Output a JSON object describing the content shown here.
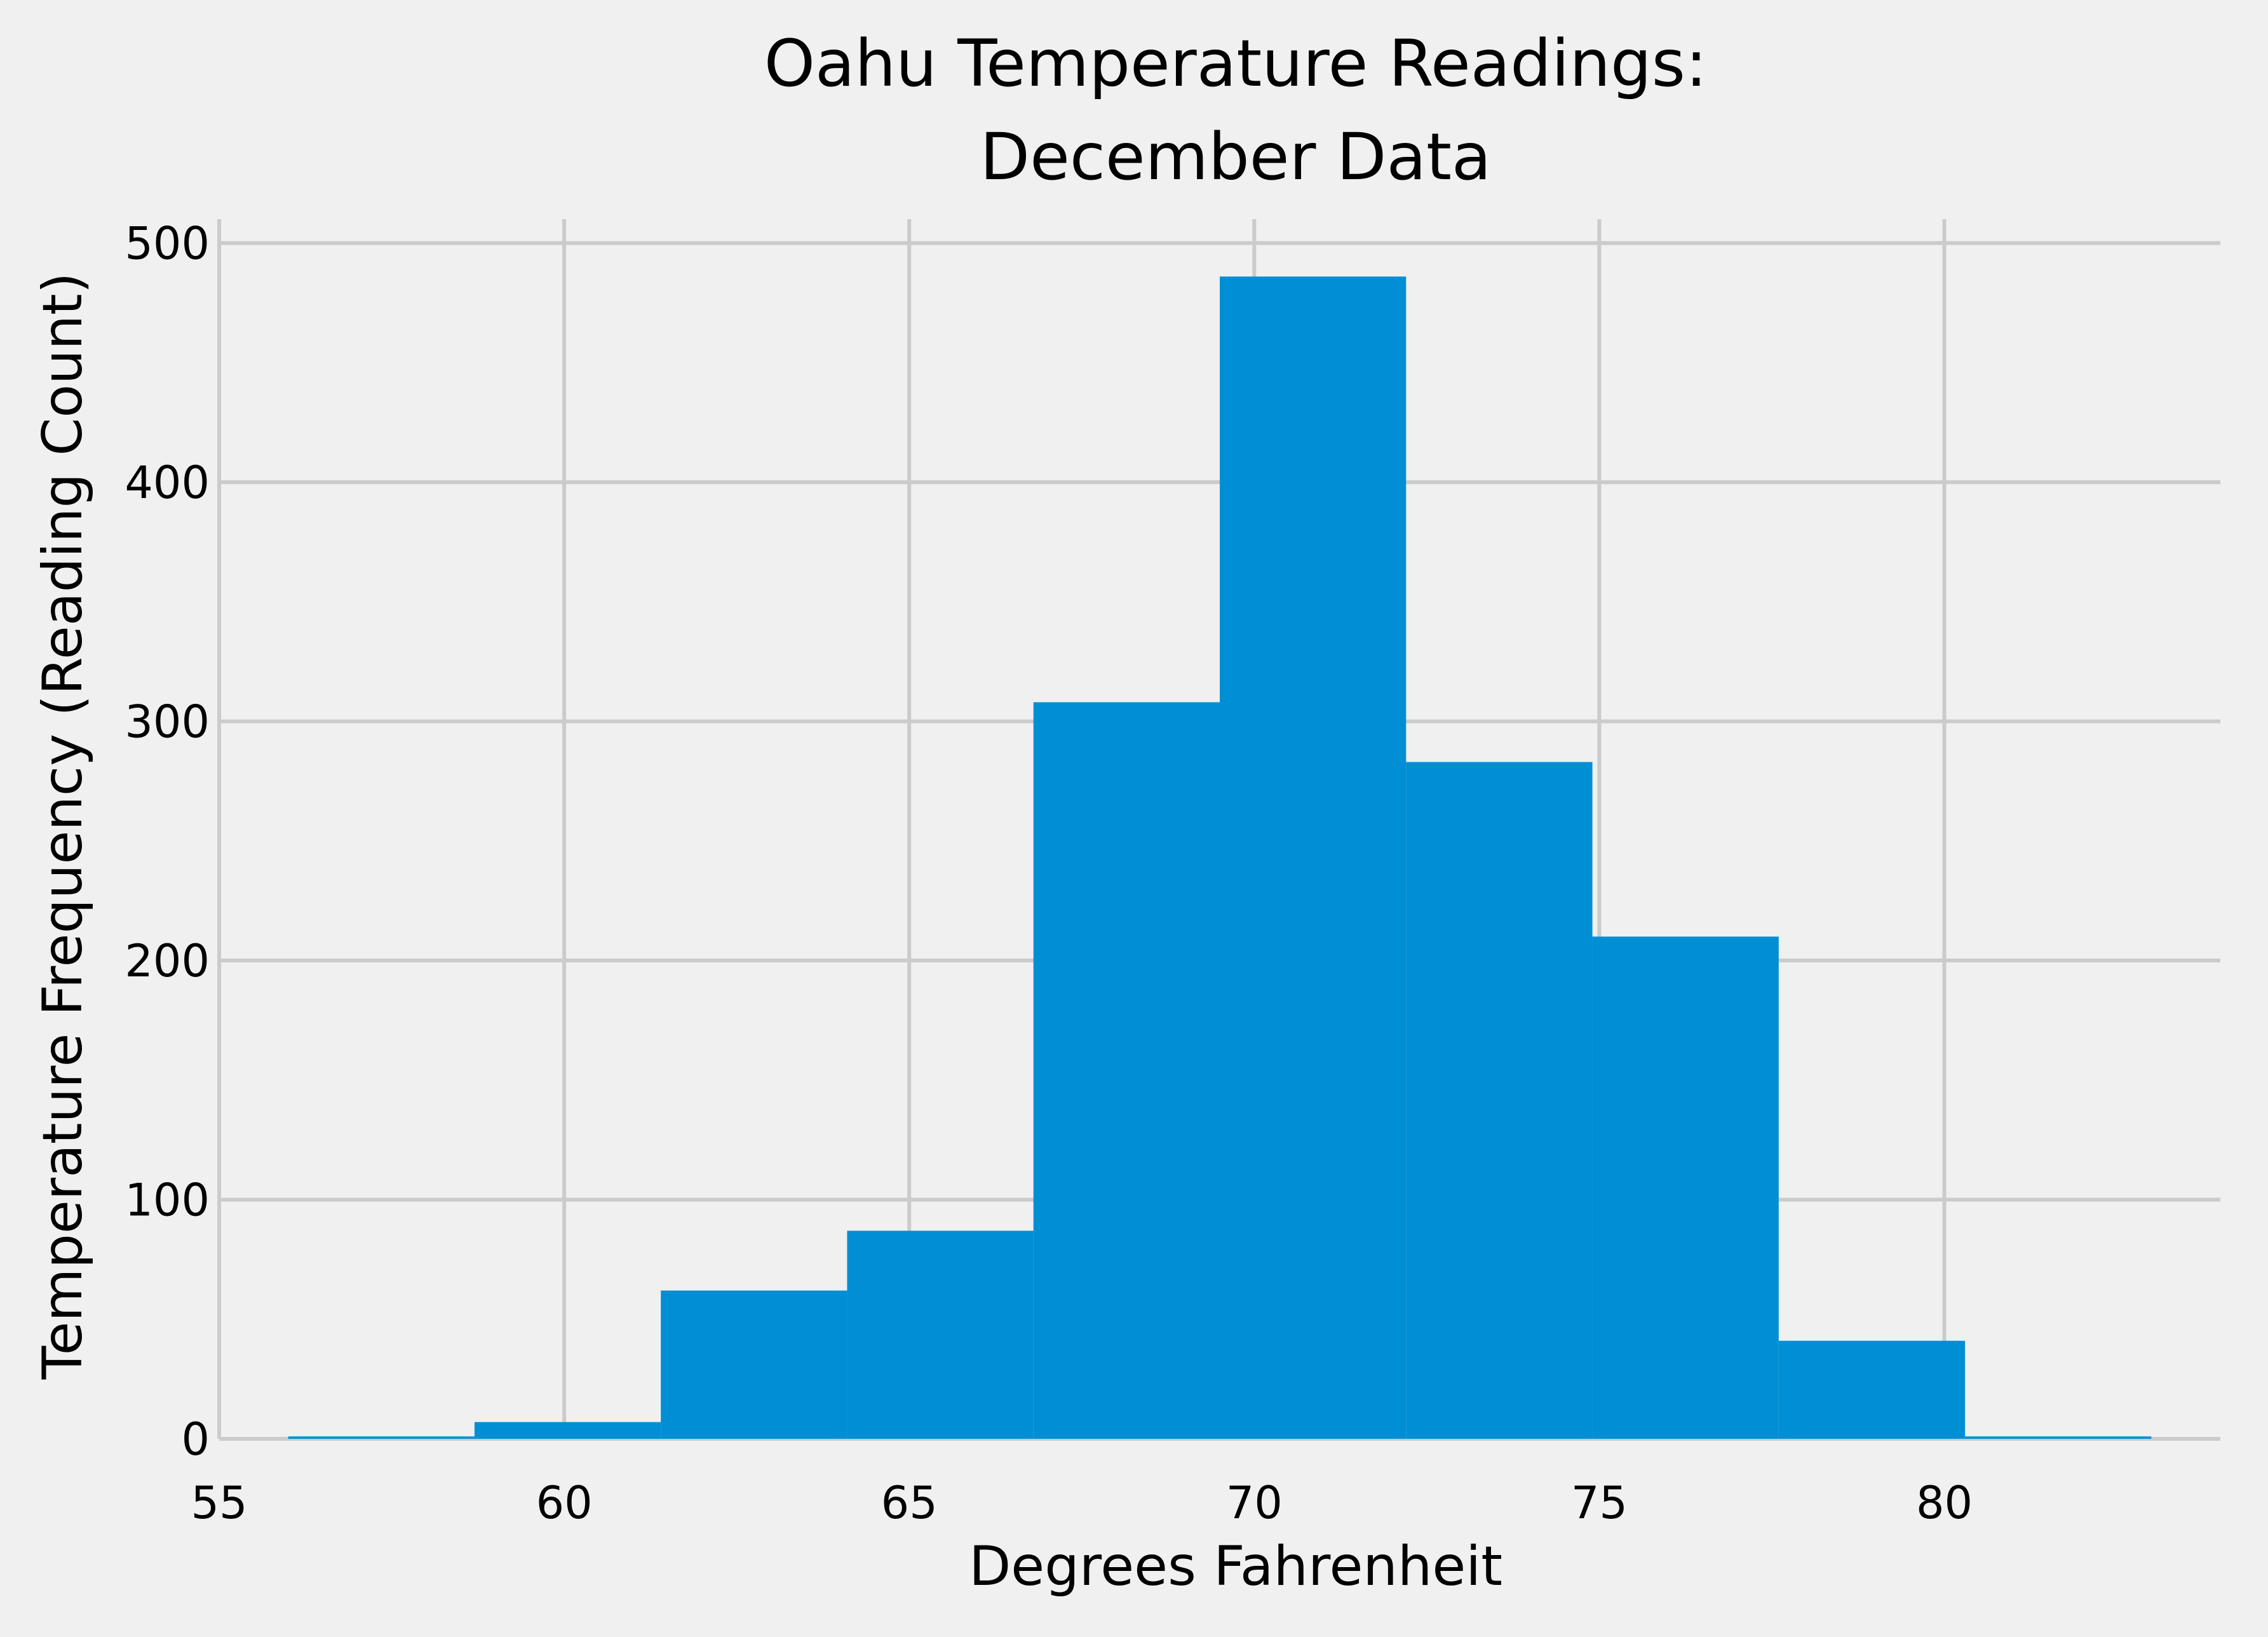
{
  "chart_data": {
    "type": "bar",
    "title_lines": [
      "Oahu Temperature Readings:",
      "December Data"
    ],
    "xlabel": "Degrees Fahrenheit",
    "ylabel": "Temperature Frequency (Reading Count)",
    "xlim": [
      55,
      84
    ],
    "ylim": [
      0,
      510
    ],
    "xticks": [
      55,
      60,
      65,
      70,
      75,
      80
    ],
    "yticks": [
      0,
      100,
      200,
      300,
      400,
      500
    ],
    "grid": true,
    "bar_color": "#008fd5",
    "bins": [
      {
        "x0": 56.0,
        "x1": 58.7,
        "count": 1
      },
      {
        "x0": 58.7,
        "x1": 61.4,
        "count": 7
      },
      {
        "x0": 61.4,
        "x1": 64.1,
        "count": 62
      },
      {
        "x0": 64.1,
        "x1": 66.8,
        "count": 87
      },
      {
        "x0": 66.8,
        "x1": 69.5,
        "count": 308
      },
      {
        "x0": 69.5,
        "x1": 72.2,
        "count": 486
      },
      {
        "x0": 72.2,
        "x1": 74.9,
        "count": 283
      },
      {
        "x0": 74.9,
        "x1": 77.6,
        "count": 210
      },
      {
        "x0": 77.6,
        "x1": 80.3,
        "count": 41
      },
      {
        "x0": 80.3,
        "x1": 83.0,
        "count": 1
      }
    ]
  }
}
